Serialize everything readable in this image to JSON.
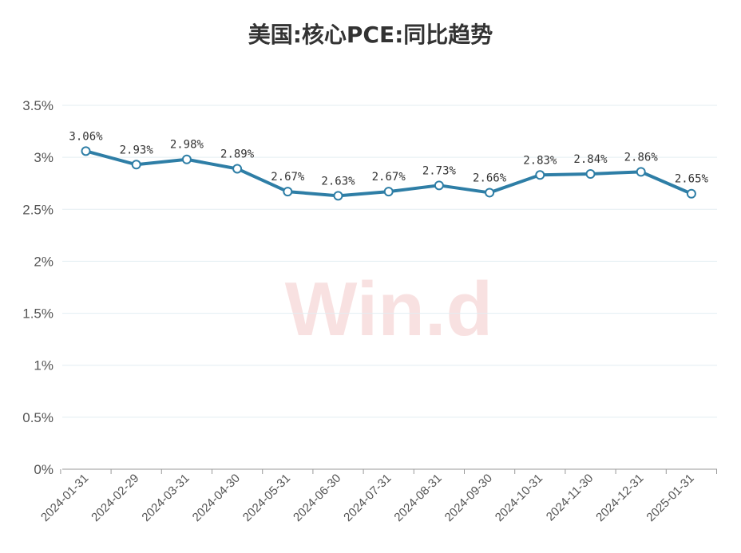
{
  "chart_data": {
    "type": "line",
    "title": "美国:核心PCE:同比趋势",
    "watermark": "Win.d",
    "categories": [
      "2024-01-31",
      "2024-02-29",
      "2024-03-31",
      "2024-04-30",
      "2024-05-31",
      "2024-06-30",
      "2024-07-31",
      "2024-08-31",
      "2024-09-30",
      "2024-10-31",
      "2024-11-30",
      "2024-12-31",
      "2025-01-31"
    ],
    "series": [
      {
        "values": [
          3.06,
          2.93,
          2.98,
          2.89,
          2.67,
          2.63,
          2.67,
          2.73,
          2.66,
          2.83,
          2.84,
          2.86,
          2.65
        ]
      }
    ],
    "data_labels": [
      "3.06%",
      "2.93%",
      "2.98%",
      "2.89%",
      "2.67%",
      "2.63%",
      "2.67%",
      "2.73%",
      "2.66%",
      "2.83%",
      "2.84%",
      "2.86%",
      "2.65%"
    ],
    "yticks": [
      "0%",
      "0.5%",
      "1%",
      "1.5%",
      "2%",
      "2.5%",
      "3%",
      "3.5%"
    ],
    "ylim": [
      0,
      3.5
    ],
    "xlabel": "",
    "ylabel": "",
    "grid": true,
    "colors": {
      "line": "#2e7ea6",
      "marker_fill": "#ffffff",
      "grid": "#e3eef2",
      "axis": "#999999"
    }
  }
}
